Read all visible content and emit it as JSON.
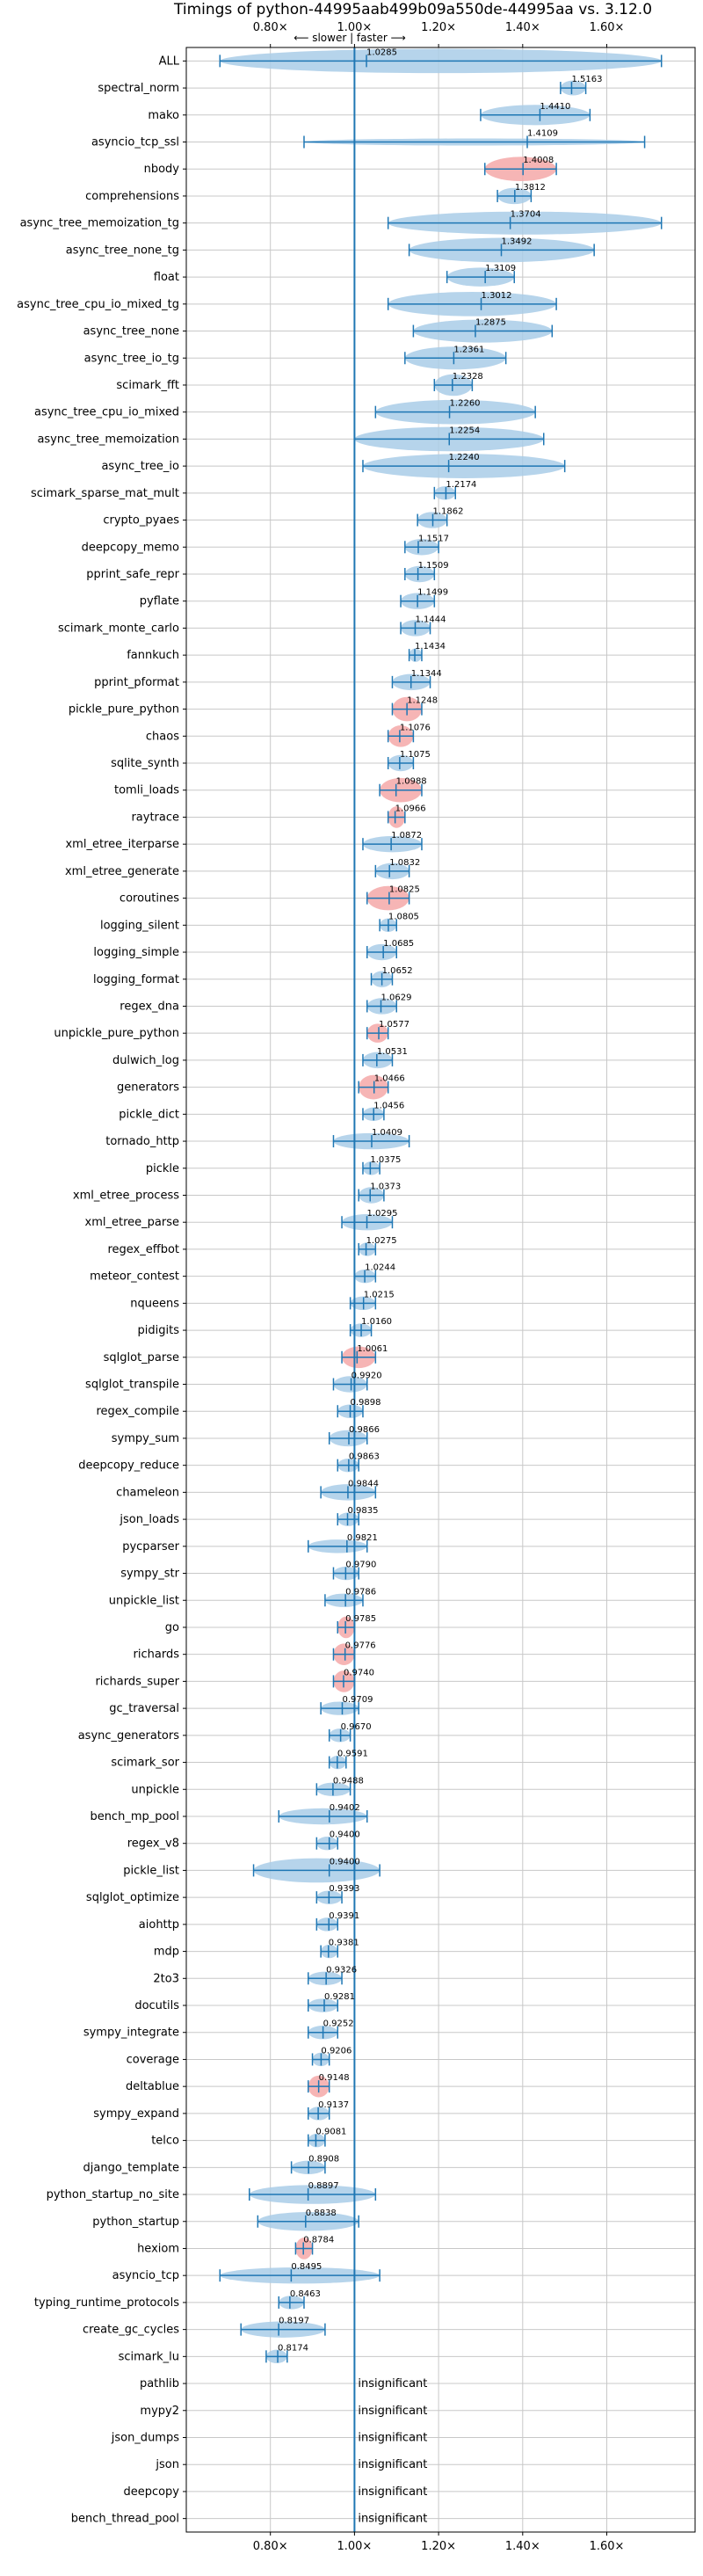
{
  "chart_data": {
    "type": "violin",
    "title": "Timings of python-44995aab499b09a550de-44995aa vs. 3.12.0",
    "top_hint": "⟵ slower | faster ⟶",
    "x_ticks": [
      "0.80×",
      "1.00×",
      "1.20×",
      "1.40×",
      "1.60×"
    ],
    "x_tick_values": [
      0.8,
      1.0,
      1.2,
      1.4,
      1.6
    ],
    "xlim": [
      0.6,
      1.81
    ],
    "reference_line": 1.0,
    "grid": true,
    "colors": {
      "violin": "#a9cce8",
      "violin_slow": "#f4a8a8",
      "errorbar": "#1f77b4",
      "refline": "#1f77b4",
      "grid": "#c8c8c8"
    },
    "insignificant_label": "insignificant",
    "benchmarks": [
      {
        "name": "ALL",
        "value": 1.0285,
        "low": 0.68,
        "high": 1.73,
        "w": 0.9,
        "label": "1.0285"
      },
      {
        "name": "spectral_norm",
        "value": 1.5163,
        "low": 1.49,
        "high": 1.55,
        "w": 0.55,
        "label": "1.5163"
      },
      {
        "name": "mako",
        "value": 1.441,
        "low": 1.3,
        "high": 1.56,
        "w": 0.75,
        "label": "1.4410"
      },
      {
        "name": "asyncio_tcp_ssl",
        "value": 1.4109,
        "low": 0.88,
        "high": 1.69,
        "w": 0.2,
        "label": "1.4109"
      },
      {
        "name": "nbody",
        "value": 1.4008,
        "low": 1.31,
        "high": 1.48,
        "w": 0.9,
        "label": "1.4008",
        "slow": true
      },
      {
        "name": "comprehensions",
        "value": 1.3812,
        "low": 1.34,
        "high": 1.42,
        "w": 0.6,
        "label": "1.3812"
      },
      {
        "name": "async_tree_memoization_tg",
        "value": 1.3704,
        "low": 1.08,
        "high": 1.73,
        "w": 0.85,
        "label": "1.3704"
      },
      {
        "name": "async_tree_none_tg",
        "value": 1.3492,
        "low": 1.13,
        "high": 1.57,
        "w": 0.9,
        "label": "1.3492"
      },
      {
        "name": "float",
        "value": 1.3109,
        "low": 1.22,
        "high": 1.38,
        "w": 0.7,
        "label": "1.3109"
      },
      {
        "name": "async_tree_cpu_io_mixed_tg",
        "value": 1.3012,
        "low": 1.08,
        "high": 1.48,
        "w": 0.9,
        "label": "1.3012"
      },
      {
        "name": "async_tree_none",
        "value": 1.2875,
        "low": 1.14,
        "high": 1.47,
        "w": 0.85,
        "label": "1.2875"
      },
      {
        "name": "async_tree_io_tg",
        "value": 1.2361,
        "low": 1.12,
        "high": 1.36,
        "w": 0.85,
        "label": "1.2361"
      },
      {
        "name": "scimark_fft",
        "value": 1.2328,
        "low": 1.19,
        "high": 1.28,
        "w": 0.8,
        "label": "1.2328"
      },
      {
        "name": "async_tree_cpu_io_mixed",
        "value": 1.226,
        "low": 1.05,
        "high": 1.43,
        "w": 0.9,
        "label": "1.2260"
      },
      {
        "name": "async_tree_memoization",
        "value": 1.2254,
        "low": 1.0,
        "high": 1.45,
        "w": 0.9,
        "label": "1.2254"
      },
      {
        "name": "async_tree_io",
        "value": 1.224,
        "low": 1.02,
        "high": 1.5,
        "w": 0.9,
        "label": "1.2240"
      },
      {
        "name": "scimark_sparse_mat_mult",
        "value": 1.2174,
        "low": 1.19,
        "high": 1.24,
        "w": 0.5,
        "label": "1.2174"
      },
      {
        "name": "crypto_pyaes",
        "value": 1.1862,
        "low": 1.15,
        "high": 1.22,
        "w": 0.6,
        "label": "1.1862"
      },
      {
        "name": "deepcopy_memo",
        "value": 1.1517,
        "low": 1.12,
        "high": 1.2,
        "w": 0.6,
        "label": "1.1517"
      },
      {
        "name": "pprint_safe_repr",
        "value": 1.1509,
        "low": 1.12,
        "high": 1.19,
        "w": 0.6,
        "label": "1.1509"
      },
      {
        "name": "pyflate",
        "value": 1.1499,
        "low": 1.11,
        "high": 1.19,
        "w": 0.6,
        "label": "1.1499"
      },
      {
        "name": "scimark_monte_carlo",
        "value": 1.1444,
        "low": 1.11,
        "high": 1.18,
        "w": 0.6,
        "label": "1.1444"
      },
      {
        "name": "fannkuch",
        "value": 1.1434,
        "low": 1.13,
        "high": 1.16,
        "w": 0.5,
        "label": "1.1434"
      },
      {
        "name": "pprint_pformat",
        "value": 1.1344,
        "low": 1.09,
        "high": 1.18,
        "w": 0.6,
        "label": "1.1344"
      },
      {
        "name": "pickle_pure_python",
        "value": 1.1248,
        "low": 1.09,
        "high": 1.16,
        "w": 0.9,
        "label": "1.1248",
        "slow": true
      },
      {
        "name": "chaos",
        "value": 1.1076,
        "low": 1.08,
        "high": 1.14,
        "w": 0.8,
        "label": "1.1076",
        "slow": true
      },
      {
        "name": "sqlite_synth",
        "value": 1.1075,
        "low": 1.08,
        "high": 1.14,
        "w": 0.6,
        "label": "1.1075"
      },
      {
        "name": "tomli_loads",
        "value": 1.0988,
        "low": 1.06,
        "high": 1.16,
        "w": 0.9,
        "label": "1.0988",
        "slow": true
      },
      {
        "name": "raytrace",
        "value": 1.0966,
        "low": 1.08,
        "high": 1.12,
        "w": 0.8,
        "label": "1.0966",
        "slow": true
      },
      {
        "name": "xml_etree_iterparse",
        "value": 1.0872,
        "low": 1.02,
        "high": 1.16,
        "w": 0.6,
        "label": "1.0872"
      },
      {
        "name": "xml_etree_generate",
        "value": 1.0832,
        "low": 1.05,
        "high": 1.13,
        "w": 0.6,
        "label": "1.0832"
      },
      {
        "name": "coroutines",
        "value": 1.0825,
        "low": 1.03,
        "high": 1.13,
        "w": 0.9,
        "label": "1.0825",
        "slow": true
      },
      {
        "name": "logging_silent",
        "value": 1.0805,
        "low": 1.06,
        "high": 1.1,
        "w": 0.5,
        "label": "1.0805"
      },
      {
        "name": "logging_simple",
        "value": 1.0685,
        "low": 1.03,
        "high": 1.1,
        "w": 0.6,
        "label": "1.0685"
      },
      {
        "name": "logging_format",
        "value": 1.0652,
        "low": 1.04,
        "high": 1.09,
        "w": 0.6,
        "label": "1.0652"
      },
      {
        "name": "regex_dna",
        "value": 1.0629,
        "low": 1.03,
        "high": 1.1,
        "w": 0.6,
        "label": "1.0629"
      },
      {
        "name": "unpickle_pure_python",
        "value": 1.0577,
        "low": 1.03,
        "high": 1.08,
        "w": 0.7,
        "label": "1.0577",
        "slow": true
      },
      {
        "name": "dulwich_log",
        "value": 1.0531,
        "low": 1.02,
        "high": 1.09,
        "w": 0.6,
        "label": "1.0531"
      },
      {
        "name": "generators",
        "value": 1.0466,
        "low": 1.01,
        "high": 1.08,
        "w": 0.9,
        "label": "1.0466",
        "slow": true
      },
      {
        "name": "pickle_dict",
        "value": 1.0456,
        "low": 1.02,
        "high": 1.07,
        "w": 0.5,
        "label": "1.0456"
      },
      {
        "name": "tornado_http",
        "value": 1.0409,
        "low": 0.95,
        "high": 1.13,
        "w": 0.6,
        "label": "1.0409"
      },
      {
        "name": "pickle",
        "value": 1.0375,
        "low": 1.02,
        "high": 1.06,
        "w": 0.5,
        "label": "1.0375"
      },
      {
        "name": "xml_etree_process",
        "value": 1.0373,
        "low": 1.01,
        "high": 1.07,
        "w": 0.6,
        "label": "1.0373"
      },
      {
        "name": "xml_etree_parse",
        "value": 1.0295,
        "low": 0.97,
        "high": 1.09,
        "w": 0.6,
        "label": "1.0295"
      },
      {
        "name": "regex_effbot",
        "value": 1.0275,
        "low": 1.01,
        "high": 1.05,
        "w": 0.5,
        "label": "1.0275"
      },
      {
        "name": "meteor_contest",
        "value": 1.0244,
        "low": 1.0,
        "high": 1.05,
        "w": 0.5,
        "label": "1.0244"
      },
      {
        "name": "nqueens",
        "value": 1.0215,
        "low": 0.99,
        "high": 1.05,
        "w": 0.5,
        "label": "1.0215"
      },
      {
        "name": "pidigits",
        "value": 1.016,
        "low": 0.99,
        "high": 1.04,
        "w": 0.5,
        "label": "1.0160"
      },
      {
        "name": "sqlglot_parse",
        "value": 1.0061,
        "low": 0.97,
        "high": 1.05,
        "w": 0.8,
        "label": "1.0061",
        "slow": true
      },
      {
        "name": "sqlglot_transpile",
        "value": 0.992,
        "low": 0.95,
        "high": 1.03,
        "w": 0.6,
        "label": "0.9920"
      },
      {
        "name": "regex_compile",
        "value": 0.9898,
        "low": 0.96,
        "high": 1.02,
        "w": 0.5,
        "label": "0.9898"
      },
      {
        "name": "sympy_sum",
        "value": 0.9866,
        "low": 0.94,
        "high": 1.03,
        "w": 0.6,
        "label": "0.9866"
      },
      {
        "name": "deepcopy_reduce",
        "value": 0.9863,
        "low": 0.96,
        "high": 1.01,
        "w": 0.5,
        "label": "0.9863"
      },
      {
        "name": "chameleon",
        "value": 0.9844,
        "low": 0.92,
        "high": 1.05,
        "w": 0.6,
        "label": "0.9844"
      },
      {
        "name": "json_loads",
        "value": 0.9835,
        "low": 0.96,
        "high": 1.01,
        "w": 0.5,
        "label": "0.9835"
      },
      {
        "name": "pycparser",
        "value": 0.9821,
        "low": 0.89,
        "high": 1.03,
        "w": 0.5,
        "label": "0.9821"
      },
      {
        "name": "sympy_str",
        "value": 0.979,
        "low": 0.95,
        "high": 1.01,
        "w": 0.5,
        "label": "0.9790"
      },
      {
        "name": "unpickle_list",
        "value": 0.9786,
        "low": 0.93,
        "high": 1.02,
        "w": 0.5,
        "label": "0.9786"
      },
      {
        "name": "go",
        "value": 0.9785,
        "low": 0.96,
        "high": 1.0,
        "w": 0.8,
        "label": "0.9785",
        "slow": true
      },
      {
        "name": "richards",
        "value": 0.9776,
        "low": 0.95,
        "high": 1.0,
        "w": 0.8,
        "label": "0.9776",
        "slow": true
      },
      {
        "name": "richards_super",
        "value": 0.974,
        "low": 0.95,
        "high": 1.0,
        "w": 0.8,
        "label": "0.9740",
        "slow": true
      },
      {
        "name": "gc_traversal",
        "value": 0.9709,
        "low": 0.92,
        "high": 1.01,
        "w": 0.5,
        "label": "0.9709"
      },
      {
        "name": "async_generators",
        "value": 0.967,
        "low": 0.94,
        "high": 0.99,
        "w": 0.5,
        "label": "0.9670"
      },
      {
        "name": "scimark_sor",
        "value": 0.9591,
        "low": 0.94,
        "high": 0.98,
        "w": 0.5,
        "label": "0.9591"
      },
      {
        "name": "unpickle",
        "value": 0.9488,
        "low": 0.91,
        "high": 0.99,
        "w": 0.5,
        "label": "0.9488"
      },
      {
        "name": "bench_mp_pool",
        "value": 0.9402,
        "low": 0.82,
        "high": 1.03,
        "w": 0.6,
        "label": "0.9402"
      },
      {
        "name": "regex_v8",
        "value": 0.94,
        "low": 0.91,
        "high": 0.96,
        "w": 0.5,
        "label": "0.9400"
      },
      {
        "name": "pickle_list",
        "value": 0.94,
        "low": 0.76,
        "high": 1.06,
        "w": 0.9,
        "label": "0.9400"
      },
      {
        "name": "sqlglot_optimize",
        "value": 0.9393,
        "low": 0.91,
        "high": 0.97,
        "w": 0.5,
        "label": "0.9393"
      },
      {
        "name": "aiohttp",
        "value": 0.9391,
        "low": 0.91,
        "high": 0.96,
        "w": 0.5,
        "label": "0.9391"
      },
      {
        "name": "mdp",
        "value": 0.9381,
        "low": 0.92,
        "high": 0.96,
        "w": 0.5,
        "label": "0.9381"
      },
      {
        "name": "2to3",
        "value": 0.9326,
        "low": 0.89,
        "high": 0.97,
        "w": 0.5,
        "label": "0.9326"
      },
      {
        "name": "docutils",
        "value": 0.9281,
        "low": 0.89,
        "high": 0.96,
        "w": 0.5,
        "label": "0.9281"
      },
      {
        "name": "sympy_integrate",
        "value": 0.9252,
        "low": 0.89,
        "high": 0.96,
        "w": 0.5,
        "label": "0.9252"
      },
      {
        "name": "coverage",
        "value": 0.9206,
        "low": 0.9,
        "high": 0.94,
        "w": 0.5,
        "label": "0.9206"
      },
      {
        "name": "deltablue",
        "value": 0.9148,
        "low": 0.89,
        "high": 0.94,
        "w": 0.8,
        "label": "0.9148",
        "slow": true
      },
      {
        "name": "sympy_expand",
        "value": 0.9137,
        "low": 0.89,
        "high": 0.94,
        "w": 0.5,
        "label": "0.9137"
      },
      {
        "name": "telco",
        "value": 0.9081,
        "low": 0.89,
        "high": 0.93,
        "w": 0.5,
        "label": "0.9081"
      },
      {
        "name": "django_template",
        "value": 0.8908,
        "low": 0.85,
        "high": 0.93,
        "w": 0.5,
        "label": "0.8908"
      },
      {
        "name": "python_startup_no_site",
        "value": 0.8897,
        "low": 0.75,
        "high": 1.05,
        "w": 0.7,
        "label": "0.8897"
      },
      {
        "name": "python_startup",
        "value": 0.8838,
        "low": 0.77,
        "high": 1.01,
        "w": 0.7,
        "label": "0.8838"
      },
      {
        "name": "hexiom",
        "value": 0.8784,
        "low": 0.86,
        "high": 0.9,
        "w": 0.8,
        "label": "0.8784",
        "slow": true
      },
      {
        "name": "asyncio_tcp",
        "value": 0.8495,
        "low": 0.68,
        "high": 1.06,
        "w": 0.6,
        "label": "0.8495"
      },
      {
        "name": "typing_runtime_protocols",
        "value": 0.8463,
        "low": 0.82,
        "high": 0.88,
        "w": 0.5,
        "label": "0.8463"
      },
      {
        "name": "create_gc_cycles",
        "value": 0.8197,
        "low": 0.73,
        "high": 0.93,
        "w": 0.6,
        "label": "0.8197"
      },
      {
        "name": "scimark_lu",
        "value": 0.8174,
        "low": 0.79,
        "high": 0.84,
        "w": 0.5,
        "label": "0.8174"
      },
      {
        "name": "pathlib",
        "insignificant": true
      },
      {
        "name": "mypy2",
        "insignificant": true
      },
      {
        "name": "json_dumps",
        "insignificant": true
      },
      {
        "name": "json",
        "insignificant": true
      },
      {
        "name": "deepcopy",
        "insignificant": true
      },
      {
        "name": "bench_thread_pool",
        "insignificant": true
      }
    ]
  }
}
